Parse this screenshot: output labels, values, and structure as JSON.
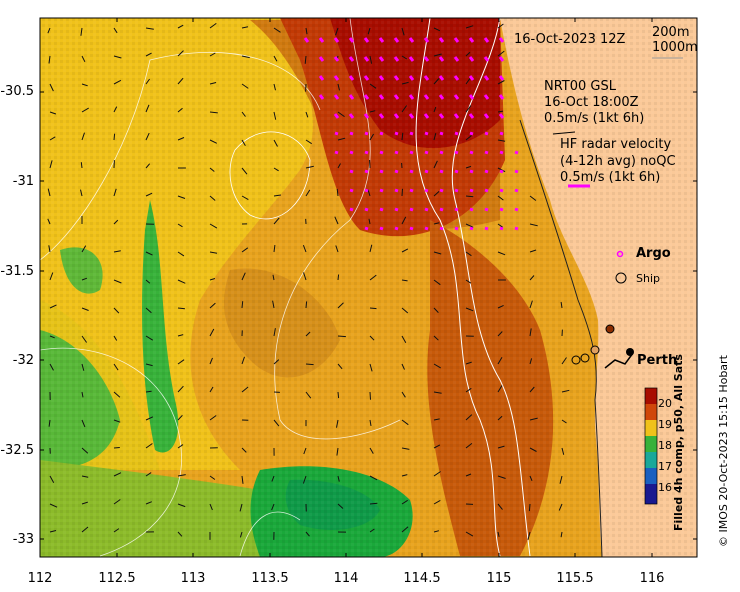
{
  "timestamp": "16-Oct-2023 12Z",
  "isobaths": [
    "200m",
    "1000m"
  ],
  "glider": {
    "name": "NRT00 GSL",
    "time": "16-Oct 18:00Z",
    "scale": "0.5m/s (1kt 6h)"
  },
  "hf_radar": {
    "label": "HF radar velocity",
    "detail": "(4-12h avg) noQC",
    "scale": "0.5m/s (1kt 6h)"
  },
  "legend": {
    "argo": "Argo",
    "ship": "Ship"
  },
  "place": "Perth",
  "x_ticks": [
    "112",
    "112.5",
    "113",
    "113.5",
    "114",
    "114.5",
    "115",
    "115.5",
    "116"
  ],
  "y_ticks": [
    "-30.5",
    "-31",
    "-31.5",
    "-32",
    "-32.5",
    "-33"
  ],
  "colorbar": {
    "ticks": [
      "20",
      "19",
      "18",
      "17",
      "16"
    ],
    "title": "Filled 4h comp, p50, All Sats"
  },
  "credit": "© IMOS 20-Oct-2023 15:15 Hobart",
  "colors": {
    "land": "#fbc998",
    "warm": "#b80c00",
    "mid": "#e8a320",
    "cool": "#1aa83a",
    "hf_vectors": "#ff00ff",
    "isobath": "#ffffff"
  }
}
